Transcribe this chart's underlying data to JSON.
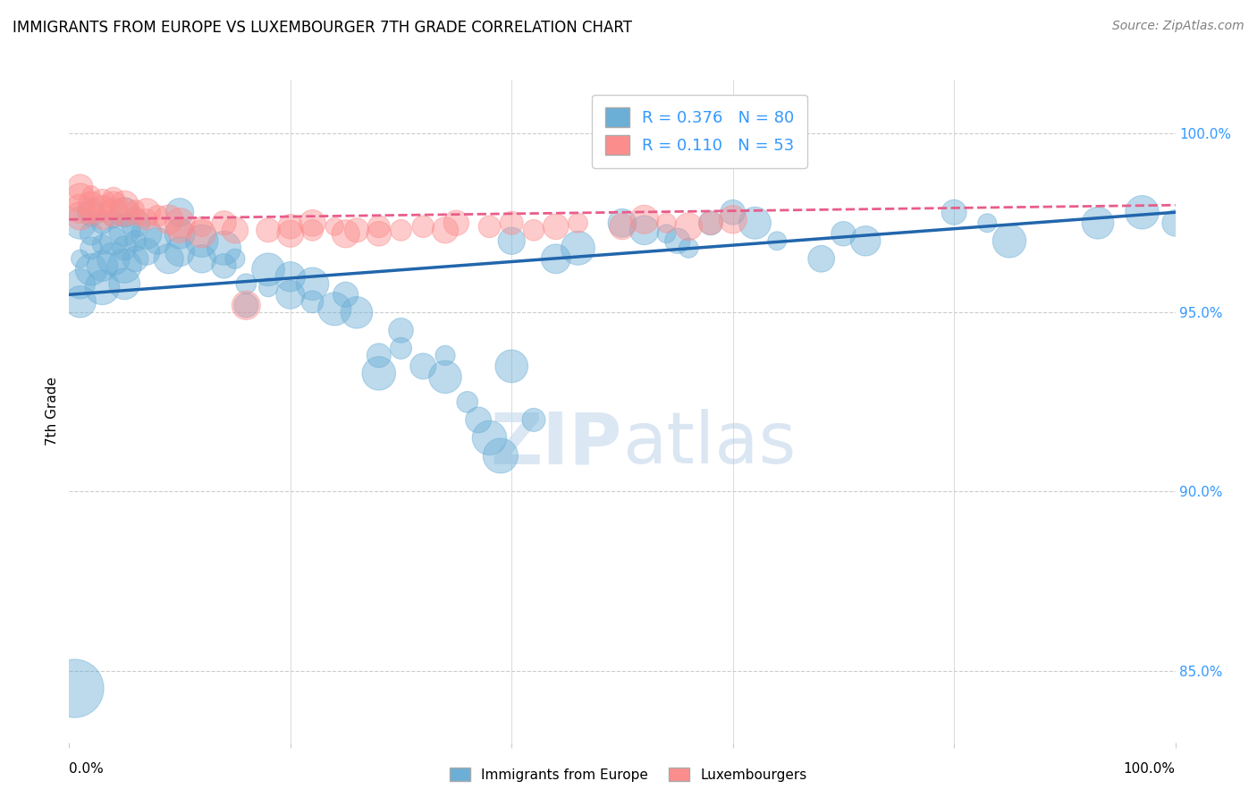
{
  "title": "IMMIGRANTS FROM EUROPE VS LUXEMBOURGER 7TH GRADE CORRELATION CHART",
  "source": "Source: ZipAtlas.com",
  "ylabel": "7th Grade",
  "xlim": [
    0.0,
    1.0
  ],
  "ylim": [
    83.0,
    101.5
  ],
  "blue_R": 0.376,
  "blue_N": 80,
  "pink_R": 0.11,
  "pink_N": 53,
  "blue_color": "#6baed6",
  "pink_color": "#fc8d8d",
  "blue_line_color": "#2166ac",
  "pink_line_color": "#e85d8a",
  "blue_scatter": [
    [
      0.01,
      97.5
    ],
    [
      0.01,
      96.5
    ],
    [
      0.01,
      95.8
    ],
    [
      0.01,
      95.3
    ],
    [
      0.02,
      97.8
    ],
    [
      0.02,
      97.2
    ],
    [
      0.02,
      96.8
    ],
    [
      0.02,
      96.2
    ],
    [
      0.03,
      97.5
    ],
    [
      0.03,
      96.9
    ],
    [
      0.03,
      96.3
    ],
    [
      0.03,
      95.7
    ],
    [
      0.04,
      97.6
    ],
    [
      0.04,
      97.0
    ],
    [
      0.04,
      96.5
    ],
    [
      0.05,
      97.8
    ],
    [
      0.05,
      97.3
    ],
    [
      0.05,
      96.8
    ],
    [
      0.05,
      96.3
    ],
    [
      0.05,
      95.8
    ],
    [
      0.06,
      97.5
    ],
    [
      0.06,
      97.0
    ],
    [
      0.06,
      96.5
    ],
    [
      0.07,
      97.2
    ],
    [
      0.07,
      96.7
    ],
    [
      0.08,
      97.0
    ],
    [
      0.09,
      96.5
    ],
    [
      0.1,
      97.8
    ],
    [
      0.1,
      97.2
    ],
    [
      0.1,
      96.7
    ],
    [
      0.12,
      97.0
    ],
    [
      0.12,
      96.5
    ],
    [
      0.14,
      96.8
    ],
    [
      0.14,
      96.3
    ],
    [
      0.15,
      96.5
    ],
    [
      0.16,
      95.2
    ],
    [
      0.16,
      95.8
    ],
    [
      0.18,
      96.2
    ],
    [
      0.18,
      95.7
    ],
    [
      0.2,
      96.0
    ],
    [
      0.2,
      95.5
    ],
    [
      0.22,
      95.8
    ],
    [
      0.22,
      95.3
    ],
    [
      0.24,
      95.1
    ],
    [
      0.25,
      95.5
    ],
    [
      0.26,
      95.0
    ],
    [
      0.28,
      93.8
    ],
    [
      0.28,
      93.3
    ],
    [
      0.3,
      94.5
    ],
    [
      0.3,
      94.0
    ],
    [
      0.32,
      93.5
    ],
    [
      0.34,
      93.8
    ],
    [
      0.34,
      93.2
    ],
    [
      0.36,
      92.5
    ],
    [
      0.37,
      92.0
    ],
    [
      0.38,
      91.5
    ],
    [
      0.39,
      91.0
    ],
    [
      0.4,
      97.0
    ],
    [
      0.4,
      93.5
    ],
    [
      0.42,
      92.0
    ],
    [
      0.44,
      96.5
    ],
    [
      0.46,
      96.8
    ],
    [
      0.5,
      97.5
    ],
    [
      0.52,
      97.3
    ],
    [
      0.54,
      97.2
    ],
    [
      0.55,
      97.0
    ],
    [
      0.56,
      96.8
    ],
    [
      0.58,
      97.5
    ],
    [
      0.6,
      97.8
    ],
    [
      0.62,
      97.5
    ],
    [
      0.64,
      97.0
    ],
    [
      0.68,
      96.5
    ],
    [
      0.7,
      97.2
    ],
    [
      0.72,
      97.0
    ],
    [
      0.8,
      97.8
    ],
    [
      0.83,
      97.5
    ],
    [
      0.85,
      97.0
    ],
    [
      0.93,
      97.5
    ],
    [
      0.97,
      97.8
    ],
    [
      1.0,
      97.5
    ],
    [
      0.005,
      84.5
    ]
  ],
  "pink_scatter": [
    [
      0.01,
      98.5
    ],
    [
      0.01,
      98.2
    ],
    [
      0.01,
      97.9
    ],
    [
      0.01,
      97.7
    ],
    [
      0.02,
      98.3
    ],
    [
      0.02,
      98.0
    ],
    [
      0.02,
      97.8
    ],
    [
      0.03,
      98.1
    ],
    [
      0.03,
      97.9
    ],
    [
      0.03,
      97.6
    ],
    [
      0.04,
      98.2
    ],
    [
      0.04,
      98.0
    ],
    [
      0.04,
      97.8
    ],
    [
      0.05,
      98.0
    ],
    [
      0.05,
      97.8
    ],
    [
      0.06,
      97.9
    ],
    [
      0.06,
      97.7
    ],
    [
      0.07,
      97.8
    ],
    [
      0.07,
      97.6
    ],
    [
      0.08,
      97.7
    ],
    [
      0.09,
      97.6
    ],
    [
      0.1,
      97.5
    ],
    [
      0.1,
      97.3
    ],
    [
      0.12,
      97.4
    ],
    [
      0.12,
      97.2
    ],
    [
      0.14,
      97.5
    ],
    [
      0.15,
      97.3
    ],
    [
      0.16,
      95.2
    ],
    [
      0.18,
      97.3
    ],
    [
      0.2,
      97.4
    ],
    [
      0.2,
      97.2
    ],
    [
      0.22,
      97.5
    ],
    [
      0.22,
      97.3
    ],
    [
      0.24,
      97.4
    ],
    [
      0.25,
      97.2
    ],
    [
      0.26,
      97.3
    ],
    [
      0.28,
      97.4
    ],
    [
      0.28,
      97.2
    ],
    [
      0.3,
      97.3
    ],
    [
      0.32,
      97.4
    ],
    [
      0.34,
      97.3
    ],
    [
      0.35,
      97.5
    ],
    [
      0.38,
      97.4
    ],
    [
      0.4,
      97.5
    ],
    [
      0.42,
      97.3
    ],
    [
      0.44,
      97.4
    ],
    [
      0.46,
      97.5
    ],
    [
      0.5,
      97.4
    ],
    [
      0.52,
      97.6
    ],
    [
      0.54,
      97.5
    ],
    [
      0.56,
      97.4
    ],
    [
      0.58,
      97.5
    ],
    [
      0.6,
      97.6
    ]
  ],
  "blue_line_x": [
    0.0,
    1.0
  ],
  "blue_line_y": [
    95.5,
    97.8
  ],
  "pink_line_x": [
    0.0,
    1.0
  ],
  "pink_line_y": [
    97.6,
    98.0
  ],
  "grid_color": "#cccccc",
  "background_color": "#ffffff"
}
